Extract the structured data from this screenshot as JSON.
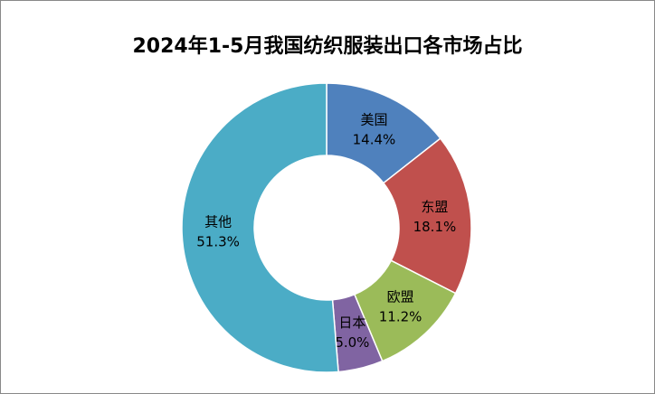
{
  "chart_data": {
    "type": "donut",
    "title": "2024年1-5月我国纺织服装出口各市场占比",
    "categories": [
      "美国",
      "东盟",
      "欧盟",
      "日本",
      "其他"
    ],
    "values": [
      14.4,
      18.1,
      11.2,
      5.0,
      51.3
    ],
    "value_labels": [
      "14.4%",
      "18.1%",
      "11.2%",
      "5.0%",
      "51.3%"
    ],
    "colors": [
      "#4f81bd",
      "#c0504d",
      "#9bbb59",
      "#8064a2",
      "#4bacc6"
    ]
  }
}
